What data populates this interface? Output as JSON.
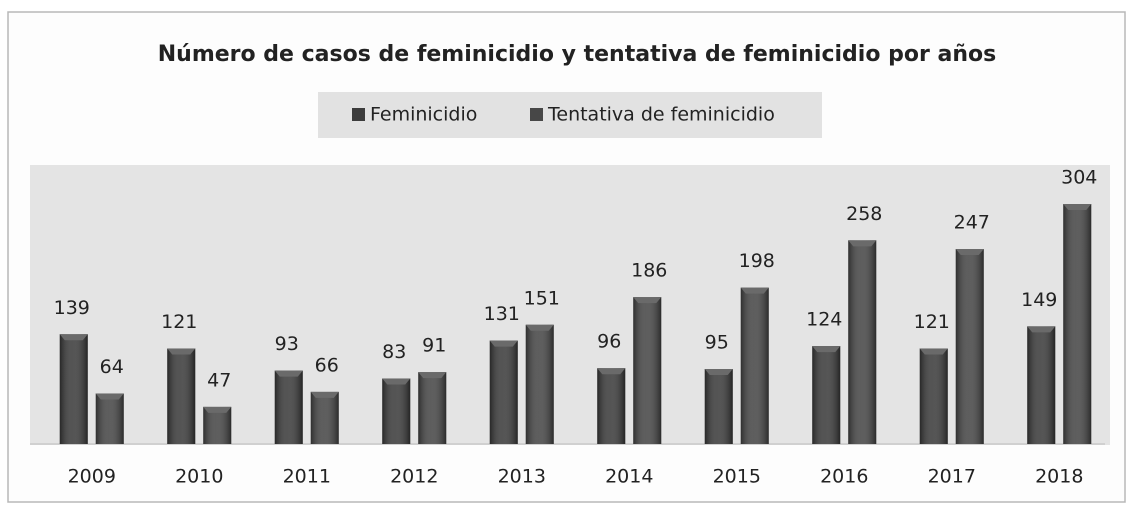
{
  "chart_data": {
    "type": "bar",
    "title": "Número de casos de feminicidio y tentativa de feminicidio por años",
    "categories": [
      "2009",
      "2010",
      "2011",
      "2012",
      "2013",
      "2014",
      "2015",
      "2016",
      "2017",
      "2018"
    ],
    "series": [
      {
        "name": "Feminicidio",
        "color": "#3c3c3c",
        "values": [
          139,
          121,
          93,
          83,
          131,
          96,
          95,
          124,
          121,
          149
        ]
      },
      {
        "name": "Tentativa de feminicidio",
        "color": "#474747",
        "values": [
          64,
          47,
          66,
          91,
          151,
          186,
          198,
          258,
          247,
          304
        ]
      }
    ],
    "legend": "top"
  }
}
